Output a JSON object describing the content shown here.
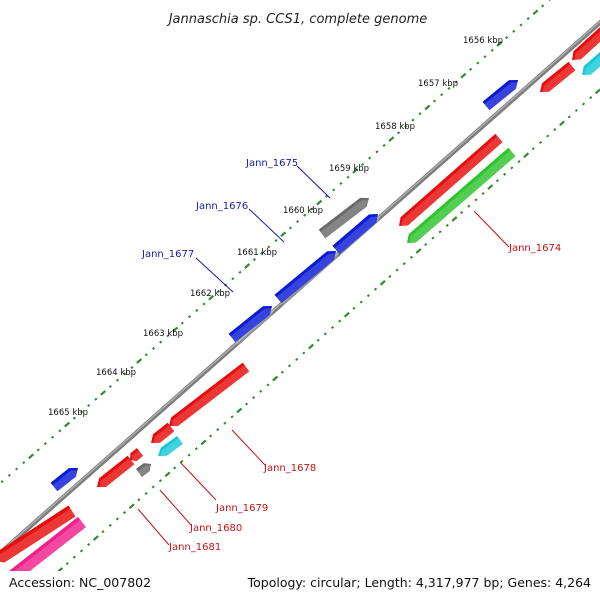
{
  "title": "Jannaschia sp. CCS1, complete genome",
  "footer": {
    "accession": "Accession: NC_007802",
    "summary": "Topology: circular; Length: 4,317,977 bp; Genes: 4,264"
  },
  "colors": {
    "backbone": "#8a8a8a",
    "ticks": "#2e8b2e",
    "forward_label": "#1a1aaa",
    "reverse_label": "#cc1111",
    "blue": "#0a1bd6",
    "red": "#e80c0c",
    "gray": "#6a6a6a",
    "green": "#2ec42e",
    "cyan": "#18c8d8",
    "pink": "#f0208c"
  },
  "scale_ticks": [
    {
      "label": "1656 kbp"
    },
    {
      "label": "1657 kbp"
    },
    {
      "label": "1658 kbp"
    },
    {
      "label": "1659 kbp"
    },
    {
      "label": "1660 kbp"
    },
    {
      "label": "1661 kbp"
    },
    {
      "label": "1662 kbp"
    },
    {
      "label": "1663 kbp"
    },
    {
      "label": "1664 kbp"
    },
    {
      "label": "1665 kbp"
    }
  ],
  "gene_labels": {
    "forward": [
      "Jann_1675",
      "Jann_1676",
      "Jann_1677"
    ],
    "reverse": [
      "Jann_1674",
      "Jann_1678",
      "Jann_1679",
      "Jann_1680",
      "Jann_1681"
    ]
  }
}
